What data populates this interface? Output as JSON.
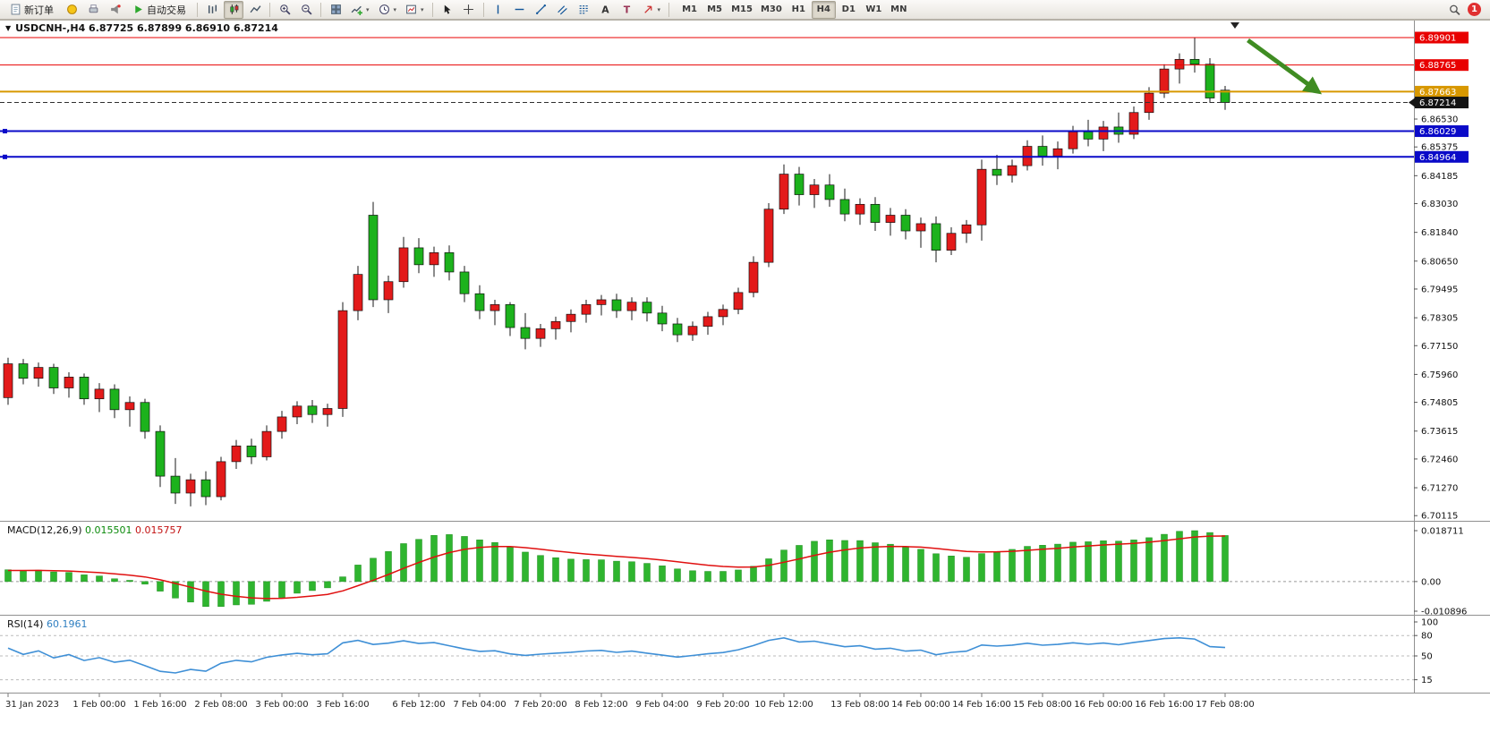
{
  "toolbar": {
    "new_order_label": "新订单",
    "autotrade_label": "自动交易",
    "timeframes": [
      "M1",
      "M5",
      "M15",
      "M30",
      "H1",
      "H4",
      "D1",
      "W1",
      "MN"
    ],
    "active_timeframe": "H4",
    "notification_count": "1"
  },
  "chart": {
    "title": "USDCNH-,H4  6.87725 6.87899 6.86910 6.87214",
    "symbol": "USDCNH-",
    "period": "H4",
    "open": "6.87725",
    "high": "6.87899",
    "low": "6.86910",
    "close": "6.87214"
  },
  "price_axis": {
    "plain_labels": [
      "6.86530",
      "6.85375",
      "6.84185",
      "6.83030",
      "6.81840",
      "6.80650",
      "6.79495",
      "6.78305",
      "6.77150",
      "6.75960",
      "6.74805",
      "6.73615",
      "6.72460",
      "6.71270",
      "6.70115"
    ],
    "tags": [
      {
        "text": "6.89901",
        "color": "#E80000"
      },
      {
        "text": "6.88765",
        "color": "#E80000"
      },
      {
        "text": "6.87663",
        "color": "#D89800"
      },
      {
        "text": "6.87214",
        "color": "#141414",
        "current": true
      },
      {
        "text": "6.86029",
        "color": "#0A0AC8"
      },
      {
        "text": "6.84964",
        "color": "#0A0AC8"
      }
    ]
  },
  "time_axis": {
    "labels": [
      "31 Jan 2023",
      "1 Feb 00:00",
      "1 Feb 16:00",
      "2 Feb 08:00",
      "3 Feb 00:00",
      "3 Feb 16:00",
      "6 Feb 12:00",
      "7 Feb 04:00",
      "7 Feb 20:00",
      "8 Feb 12:00",
      "9 Feb 04:00",
      "9 Feb 20:00",
      "10 Feb 12:00",
      "13 Feb 08:00",
      "14 Feb 00:00",
      "14 Feb 16:00",
      "15 Feb 08:00",
      "16 Feb 00:00",
      "16 Feb 16:00",
      "17 Feb 08:00"
    ],
    "bar_index": [
      0,
      6,
      10,
      14,
      18,
      22,
      27,
      31,
      35,
      39,
      43,
      47,
      51,
      56,
      60,
      64,
      68,
      72,
      76,
      80
    ]
  },
  "indicators": {
    "macd": {
      "name": "MACD(12,26,9)",
      "fast": 12,
      "slow": 26,
      "signal": 9,
      "value_main": "0.015501",
      "value_signal": "0.015757",
      "axis_max": "0.018711",
      "axis_zero": "0.00",
      "axis_min": "-0.010896",
      "histogram_color": "#2FB52F",
      "signal_color": "#E01010"
    },
    "rsi": {
      "name": "RSI(14)",
      "period": 14,
      "value": "60.1961",
      "levels": [
        "100",
        "80",
        "50",
        "15"
      ],
      "line_color": "#3E8FD6"
    }
  },
  "chart_data": {
    "type": "candlestick",
    "symbol": "USDCNH",
    "timeframe": "H4",
    "ylim": [
      6.7,
      6.907
    ],
    "bull_color": "#E31A1A",
    "bear_color": "#1CB21C",
    "wick_color": "#1A1A1A",
    "candles": [
      [
        6.75,
        6.7665,
        6.747,
        6.764
      ],
      [
        6.764,
        6.766,
        6.7555,
        6.758
      ],
      [
        6.758,
        6.7645,
        6.7545,
        6.7625
      ],
      [
        6.7625,
        6.764,
        6.7515,
        6.754
      ],
      [
        6.754,
        6.7605,
        6.75,
        6.7585
      ],
      [
        6.7585,
        6.76,
        6.747,
        6.7495
      ],
      [
        6.7495,
        6.756,
        6.744,
        6.7535
      ],
      [
        6.7535,
        6.7555,
        6.7415,
        6.745
      ],
      [
        6.745,
        6.7505,
        6.738,
        6.748
      ],
      [
        6.748,
        6.7495,
        6.733,
        6.736
      ],
      [
        6.736,
        6.7385,
        6.713,
        6.7175
      ],
      [
        6.7175,
        6.725,
        6.706,
        6.7105
      ],
      [
        6.7105,
        6.7185,
        6.705,
        6.716
      ],
      [
        6.716,
        6.7195,
        6.7055,
        6.709
      ],
      [
        6.709,
        6.7255,
        6.7075,
        6.7235
      ],
      [
        6.7235,
        6.7325,
        6.7205,
        6.73
      ],
      [
        6.73,
        6.733,
        6.7225,
        6.7255
      ],
      [
        6.7255,
        6.7385,
        6.724,
        6.736
      ],
      [
        6.736,
        6.7445,
        6.733,
        6.742
      ],
      [
        6.742,
        6.7485,
        6.739,
        6.7465
      ],
      [
        6.7465,
        6.749,
        6.7395,
        6.743
      ],
      [
        6.743,
        6.7475,
        6.738,
        6.7455
      ],
      [
        6.7455,
        6.7895,
        6.742,
        6.786
      ],
      [
        6.786,
        6.8045,
        6.782,
        6.801
      ],
      [
        6.8255,
        6.831,
        6.7875,
        6.7905
      ],
      [
        6.7905,
        6.8005,
        6.785,
        6.798
      ],
      [
        6.798,
        6.8165,
        6.7955,
        6.812
      ],
      [
        6.812,
        6.816,
        6.8015,
        6.805
      ],
      [
        6.805,
        6.8125,
        6.8,
        6.81
      ],
      [
        6.81,
        6.813,
        6.7985,
        6.802
      ],
      [
        6.802,
        6.8045,
        6.7895,
        6.793
      ],
      [
        6.793,
        6.7965,
        6.7825,
        6.786
      ],
      [
        6.786,
        6.7905,
        6.78,
        6.7885
      ],
      [
        6.7885,
        6.7895,
        6.7755,
        6.779
      ],
      [
        6.779,
        6.785,
        6.77,
        6.7745
      ],
      [
        6.7745,
        6.7805,
        6.771,
        6.7785
      ],
      [
        6.7785,
        6.7835,
        6.774,
        6.7815
      ],
      [
        6.7815,
        6.7865,
        6.777,
        6.7845
      ],
      [
        6.7845,
        6.7905,
        6.781,
        6.7885
      ],
      [
        6.7885,
        6.7925,
        6.784,
        6.7905
      ],
      [
        6.7905,
        6.793,
        6.783,
        6.786
      ],
      [
        6.786,
        6.7915,
        6.782,
        6.7895
      ],
      [
        6.7895,
        6.7915,
        6.7815,
        6.785
      ],
      [
        6.785,
        6.788,
        6.7775,
        6.7805
      ],
      [
        6.7805,
        6.783,
        6.773,
        6.776
      ],
      [
        6.776,
        6.7815,
        6.7735,
        6.7795
      ],
      [
        6.7795,
        6.7855,
        6.776,
        6.7835
      ],
      [
        6.7835,
        6.7885,
        6.78,
        6.7865
      ],
      [
        6.7865,
        6.7955,
        6.7845,
        6.7935
      ],
      [
        6.7935,
        6.8085,
        6.7915,
        6.806
      ],
      [
        6.806,
        6.8305,
        6.804,
        6.828
      ],
      [
        6.828,
        6.8465,
        6.826,
        6.8425
      ],
      [
        6.8425,
        6.8455,
        6.8295,
        6.834
      ],
      [
        6.834,
        6.8405,
        6.8285,
        6.838
      ],
      [
        6.838,
        6.8425,
        6.829,
        6.832
      ],
      [
        6.832,
        6.8365,
        6.823,
        6.826
      ],
      [
        6.826,
        6.8325,
        6.8215,
        6.83
      ],
      [
        6.83,
        6.833,
        6.819,
        6.8225
      ],
      [
        6.8225,
        6.8285,
        6.817,
        6.8255
      ],
      [
        6.8255,
        6.828,
        6.8155,
        6.819
      ],
      [
        6.819,
        6.8245,
        6.812,
        6.822
      ],
      [
        6.822,
        6.825,
        6.806,
        6.811
      ],
      [
        6.811,
        6.8205,
        6.809,
        6.818
      ],
      [
        6.818,
        6.8235,
        6.814,
        6.8215
      ],
      [
        6.8215,
        6.8485,
        6.815,
        6.8445
      ],
      [
        6.8445,
        6.8505,
        6.838,
        6.842
      ],
      [
        6.842,
        6.8485,
        6.839,
        6.846
      ],
      [
        6.846,
        6.8565,
        6.844,
        6.854
      ],
      [
        6.854,
        6.8585,
        6.846,
        6.85
      ],
      [
        6.85,
        6.856,
        6.8445,
        6.853
      ],
      [
        6.853,
        6.8625,
        6.851,
        6.86
      ],
      [
        6.86,
        6.865,
        6.854,
        6.857
      ],
      [
        6.857,
        6.8645,
        6.852,
        6.862
      ],
      [
        6.862,
        6.868,
        6.8555,
        6.859
      ],
      [
        6.859,
        6.8705,
        6.857,
        6.868
      ],
      [
        6.868,
        6.8785,
        6.865,
        6.876
      ],
      [
        6.876,
        6.888,
        6.874,
        6.886
      ],
      [
        6.886,
        6.8925,
        6.88,
        6.89
      ],
      [
        6.89,
        6.899,
        6.8845,
        6.888
      ],
      [
        6.888,
        6.8905,
        6.872,
        6.874
      ],
      [
        6.87725,
        6.87899,
        6.8691,
        6.87214
      ]
    ],
    "levels": [
      {
        "price": 6.89901,
        "color": "#E80000",
        "width": 1
      },
      {
        "price": 6.88765,
        "color": "#E80000",
        "width": 1
      },
      {
        "price": 6.87663,
        "color": "#D89800",
        "width": 2
      },
      {
        "price": 6.87214,
        "color": "#303030",
        "width": 1,
        "dashed": true,
        "role": "current-price"
      },
      {
        "price": 6.86029,
        "color": "#0A0AC8",
        "width": 2,
        "handles": true
      },
      {
        "price": 6.84964,
        "color": "#0A0AC8",
        "width": 2,
        "handles": true
      }
    ],
    "current_price": 6.87214,
    "annotation_arrow": {
      "color": "#3F8C22",
      "from_bar": 81.5,
      "from_price": 6.8979,
      "to_bar": 86.0,
      "to_price": 6.8772
    }
  }
}
